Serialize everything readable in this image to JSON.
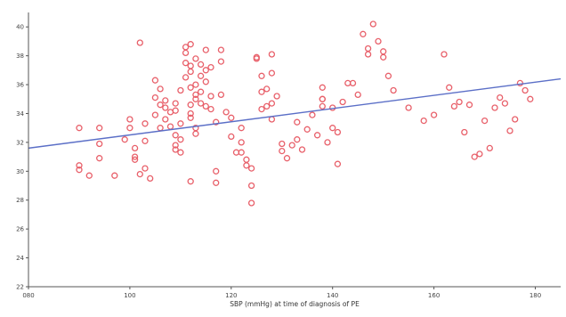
{
  "chart_data": {
    "type": "scatter",
    "title": "",
    "xlabel": "SBP (mmHg) at time of diagnosis of PE",
    "ylabel": "",
    "xlim": [
      80,
      185
    ],
    "ylim": [
      22,
      41
    ],
    "xticks": [
      80,
      100,
      120,
      140,
      160,
      180
    ],
    "xtick_labels": [
      "080",
      "100",
      "120",
      "140",
      "160",
      "180"
    ],
    "yticks": [
      22,
      24,
      26,
      28,
      30,
      32,
      34,
      36,
      38,
      40
    ],
    "ytick_labels": [
      "22",
      "24",
      "26",
      "28",
      "30",
      "32",
      "34",
      "36",
      "38",
      "40"
    ],
    "grid": false,
    "colors": {
      "points": "#e8606a",
      "fit_line": "#5b6fc7",
      "axis": "#555555"
    },
    "fit_line": {
      "x": [
        80,
        185
      ],
      "y": [
        31.6,
        36.4
      ]
    },
    "points": [
      {
        "x": 90,
        "y": 33.0
      },
      {
        "x": 90,
        "y": 30.1
      },
      {
        "x": 90,
        "y": 30.4
      },
      {
        "x": 92,
        "y": 29.7
      },
      {
        "x": 94,
        "y": 31.9
      },
      {
        "x": 94,
        "y": 30.9
      },
      {
        "x": 94,
        "y": 33.0
      },
      {
        "x": 97,
        "y": 29.7
      },
      {
        "x": 99,
        "y": 32.2
      },
      {
        "x": 100,
        "y": 33.0
      },
      {
        "x": 100,
        "y": 33.6
      },
      {
        "x": 101,
        "y": 31.6
      },
      {
        "x": 101,
        "y": 31.0
      },
      {
        "x": 101,
        "y": 30.8
      },
      {
        "x": 102,
        "y": 38.9
      },
      {
        "x": 103,
        "y": 33.3
      },
      {
        "x": 103,
        "y": 32.1
      },
      {
        "x": 103,
        "y": 30.2
      },
      {
        "x": 102,
        "y": 29.8
      },
      {
        "x": 104,
        "y": 29.5
      },
      {
        "x": 105,
        "y": 36.3
      },
      {
        "x": 105,
        "y": 35.1
      },
      {
        "x": 105,
        "y": 33.9
      },
      {
        "x": 106,
        "y": 35.7
      },
      {
        "x": 106,
        "y": 34.6
      },
      {
        "x": 106,
        "y": 33.0
      },
      {
        "x": 107,
        "y": 34.9
      },
      {
        "x": 107,
        "y": 34.4
      },
      {
        "x": 107,
        "y": 33.6
      },
      {
        "x": 108,
        "y": 33.1
      },
      {
        "x": 108,
        "y": 34.1
      },
      {
        "x": 109,
        "y": 34.7
      },
      {
        "x": 109,
        "y": 34.2
      },
      {
        "x": 109,
        "y": 32.5
      },
      {
        "x": 109,
        "y": 31.8
      },
      {
        "x": 109,
        "y": 31.5
      },
      {
        "x": 110,
        "y": 35.6
      },
      {
        "x": 110,
        "y": 33.3
      },
      {
        "x": 110,
        "y": 32.2
      },
      {
        "x": 110,
        "y": 31.3
      },
      {
        "x": 111,
        "y": 38.6
      },
      {
        "x": 111,
        "y": 38.2
      },
      {
        "x": 111,
        "y": 37.5
      },
      {
        "x": 111,
        "y": 36.5
      },
      {
        "x": 112,
        "y": 38.8
      },
      {
        "x": 112,
        "y": 37.3
      },
      {
        "x": 112,
        "y": 36.9
      },
      {
        "x": 112,
        "y": 35.8
      },
      {
        "x": 112,
        "y": 34.6
      },
      {
        "x": 112,
        "y": 34.0
      },
      {
        "x": 112,
        "y": 33.7
      },
      {
        "x": 112,
        "y": 29.3
      },
      {
        "x": 113,
        "y": 37.8
      },
      {
        "x": 113,
        "y": 36.0
      },
      {
        "x": 113,
        "y": 35.3
      },
      {
        "x": 113,
        "y": 35.0
      },
      {
        "x": 113,
        "y": 33.0
      },
      {
        "x": 113,
        "y": 32.6
      },
      {
        "x": 114,
        "y": 37.4
      },
      {
        "x": 114,
        "y": 36.6
      },
      {
        "x": 114,
        "y": 35.5
      },
      {
        "x": 114,
        "y": 34.7
      },
      {
        "x": 115,
        "y": 38.4
      },
      {
        "x": 115,
        "y": 37.0
      },
      {
        "x": 115,
        "y": 36.2
      },
      {
        "x": 115,
        "y": 34.5
      },
      {
        "x": 116,
        "y": 37.2
      },
      {
        "x": 116,
        "y": 35.2
      },
      {
        "x": 116,
        "y": 34.3
      },
      {
        "x": 117,
        "y": 33.4
      },
      {
        "x": 117,
        "y": 30.0
      },
      {
        "x": 117,
        "y": 29.2
      },
      {
        "x": 118,
        "y": 38.4
      },
      {
        "x": 118,
        "y": 37.6
      },
      {
        "x": 118,
        "y": 35.3
      },
      {
        "x": 119,
        "y": 34.1
      },
      {
        "x": 120,
        "y": 33.7
      },
      {
        "x": 120,
        "y": 32.4
      },
      {
        "x": 121,
        "y": 31.3
      },
      {
        "x": 122,
        "y": 31.3
      },
      {
        "x": 122,
        "y": 32.0
      },
      {
        "x": 122,
        "y": 33.0
      },
      {
        "x": 123,
        "y": 30.4
      },
      {
        "x": 123,
        "y": 30.8
      },
      {
        "x": 124,
        "y": 30.2
      },
      {
        "x": 124,
        "y": 29.0
      },
      {
        "x": 124,
        "y": 27.8
      },
      {
        "x": 125,
        "y": 37.8
      },
      {
        "x": 125,
        "y": 37.9
      },
      {
        "x": 126,
        "y": 36.6
      },
      {
        "x": 126,
        "y": 35.5
      },
      {
        "x": 126,
        "y": 34.3
      },
      {
        "x": 127,
        "y": 35.7
      },
      {
        "x": 127,
        "y": 34.5
      },
      {
        "x": 128,
        "y": 38.1
      },
      {
        "x": 128,
        "y": 36.8
      },
      {
        "x": 128,
        "y": 34.7
      },
      {
        "x": 128,
        "y": 33.6
      },
      {
        "x": 129,
        "y": 35.2
      },
      {
        "x": 130,
        "y": 31.9
      },
      {
        "x": 130,
        "y": 31.4
      },
      {
        "x": 131,
        "y": 30.9
      },
      {
        "x": 132,
        "y": 31.8
      },
      {
        "x": 133,
        "y": 33.4
      },
      {
        "x": 133,
        "y": 32.2
      },
      {
        "x": 134,
        "y": 31.5
      },
      {
        "x": 135,
        "y": 32.9
      },
      {
        "x": 136,
        "y": 33.9
      },
      {
        "x": 137,
        "y": 32.5
      },
      {
        "x": 138,
        "y": 35.8
      },
      {
        "x": 138,
        "y": 35.0
      },
      {
        "x": 138,
        "y": 35.0
      },
      {
        "x": 138,
        "y": 34.5
      },
      {
        "x": 139,
        "y": 32.0
      },
      {
        "x": 140,
        "y": 34.4
      },
      {
        "x": 140,
        "y": 33.0
      },
      {
        "x": 141,
        "y": 32.7
      },
      {
        "x": 141,
        "y": 30.5
      },
      {
        "x": 142,
        "y": 34.8
      },
      {
        "x": 143,
        "y": 36.1
      },
      {
        "x": 144,
        "y": 36.1
      },
      {
        "x": 145,
        "y": 35.3
      },
      {
        "x": 146,
        "y": 39.5
      },
      {
        "x": 147,
        "y": 38.5
      },
      {
        "x": 147,
        "y": 38.1
      },
      {
        "x": 148,
        "y": 40.2
      },
      {
        "x": 149,
        "y": 39.0
      },
      {
        "x": 150,
        "y": 38.3
      },
      {
        "x": 150,
        "y": 37.9
      },
      {
        "x": 151,
        "y": 36.6
      },
      {
        "x": 152,
        "y": 35.6
      },
      {
        "x": 155,
        "y": 34.4
      },
      {
        "x": 158,
        "y": 33.5
      },
      {
        "x": 160,
        "y": 33.9
      },
      {
        "x": 162,
        "y": 38.1
      },
      {
        "x": 163,
        "y": 35.8
      },
      {
        "x": 164,
        "y": 34.5
      },
      {
        "x": 165,
        "y": 34.8
      },
      {
        "x": 166,
        "y": 32.7
      },
      {
        "x": 167,
        "y": 34.6
      },
      {
        "x": 168,
        "y": 31.0
      },
      {
        "x": 169,
        "y": 31.2
      },
      {
        "x": 170,
        "y": 33.5
      },
      {
        "x": 171,
        "y": 31.6
      },
      {
        "x": 172,
        "y": 34.4
      },
      {
        "x": 173,
        "y": 35.1
      },
      {
        "x": 174,
        "y": 34.7
      },
      {
        "x": 175,
        "y": 32.8
      },
      {
        "x": 176,
        "y": 33.6
      },
      {
        "x": 177,
        "y": 36.1
      },
      {
        "x": 178,
        "y": 35.6
      },
      {
        "x": 179,
        "y": 35.0
      }
    ]
  }
}
